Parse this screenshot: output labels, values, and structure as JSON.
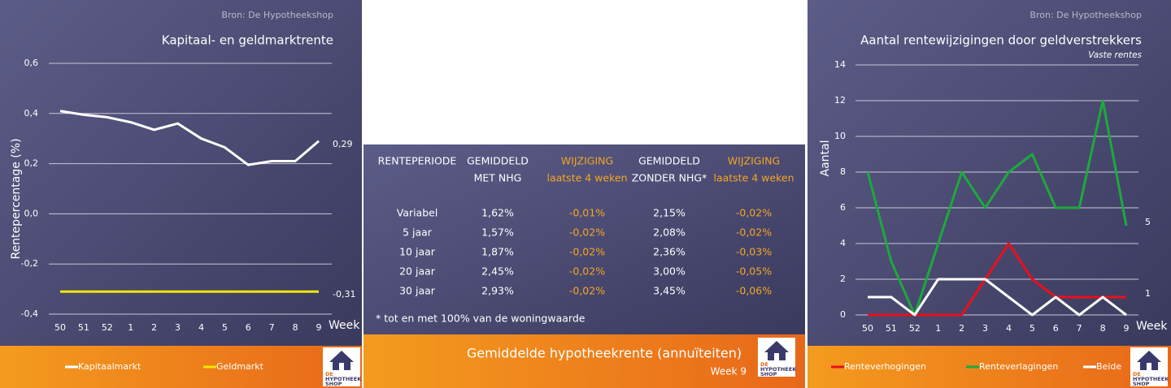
{
  "chart_data": [
    {
      "type": "line",
      "source": "Bron: De Hypotheekshop",
      "title": "Kapitaal- en geldmarktrente",
      "y_label": "Rentepercentage (%)",
      "x_label": "Week",
      "categories": [
        "50",
        "51",
        "52",
        "1",
        "2",
        "3",
        "4",
        "5",
        "6",
        "7",
        "8",
        "9"
      ],
      "ylim": [
        -0.4,
        0.6
      ],
      "yticks": [
        {
          "value": -0.4,
          "label": "-0,4"
        },
        {
          "value": -0.2,
          "label": "-0,2"
        },
        {
          "value": 0,
          "label": "0,0"
        },
        {
          "value": 0.2,
          "label": "0,2"
        },
        {
          "value": 0.4,
          "label": "0,4"
        },
        {
          "value": 0.6,
          "label": "0,6"
        }
      ],
      "grid": true,
      "series": [
        {
          "name": "Kapitaalmarkt",
          "color": "#ffffff",
          "values": [
            0.41,
            0.395,
            0.385,
            0.365,
            0.335,
            0.36,
            0.3,
            0.265,
            0.195,
            0.21,
            0.21,
            0.29
          ],
          "end_label": "0,29"
        },
        {
          "name": "Geldmarkt",
          "color": "#f2e600",
          "values": [
            -0.31,
            -0.31,
            -0.31,
            -0.31,
            -0.31,
            -0.31,
            -0.31,
            -0.31,
            -0.31,
            -0.31,
            -0.31,
            -0.31
          ],
          "end_label": "-0,31"
        }
      ]
    },
    {
      "type": "line",
      "source": "Bron: De Hypotheekshop",
      "title": "Aantal rentewijzigingen door geldverstrekkers",
      "subtitle": "Vaste rentes",
      "y_label": "Aantal",
      "x_label": "Week",
      "categories": [
        "50",
        "51",
        "52",
        "1",
        "2",
        "3",
        "4",
        "5",
        "6",
        "7",
        "8",
        "9"
      ],
      "ylim": [
        0,
        14
      ],
      "yticks": [
        0,
        2,
        4,
        6,
        8,
        10,
        12,
        14
      ],
      "grid": true,
      "series": [
        {
          "name": "Renteverhogingen",
          "color": "#e8101a",
          "values": [
            0,
            0,
            0,
            0,
            0,
            2,
            4,
            2,
            1,
            1,
            1,
            1
          ],
          "end_label": "1"
        },
        {
          "name": "Renteverlagingen",
          "color": "#1ea83c",
          "values": [
            8,
            3,
            0,
            4,
            8,
            6,
            8,
            9,
            6,
            6,
            12,
            5
          ],
          "end_label": "5"
        },
        {
          "name": "Beide",
          "color": "#ffffff",
          "values": [
            1,
            1,
            0,
            2,
            2,
            2,
            1,
            0,
            1,
            0,
            1,
            0
          ]
        }
      ]
    }
  ],
  "table": {
    "title": "Gemiddelde hypotheekrente (annuïteiten)",
    "week": "Week 9",
    "headers": [
      [
        "RENTEPERIODE"
      ],
      [
        "GEMIDDELD",
        "MET NHG"
      ],
      [
        "WIJZIGING",
        "laatste 4 weken"
      ],
      [
        "GEMIDDELD",
        "ZONDER NHG*"
      ],
      [
        "WIJZIGING",
        "laatste 4 weken"
      ]
    ],
    "rows": [
      [
        "Variabel",
        "1,62%",
        "-0,01%",
        "2,15%",
        "-0,02%"
      ],
      [
        "5 jaar",
        "1,57%",
        "-0,02%",
        "2,08%",
        "-0,02%"
      ],
      [
        "10 jaar",
        "1,87%",
        "-0,02%",
        "2,36%",
        "-0,03%"
      ],
      [
        "20 jaar",
        "2,45%",
        "-0,02%",
        "3,00%",
        "-0,05%"
      ],
      [
        "30 jaar",
        "2,93%",
        "-0,02%",
        "3,45%",
        "-0,06%"
      ]
    ],
    "footnote": "* tot en met 100% van de woningwaarde"
  },
  "logo": [
    "DE",
    "HYPOTHEEK",
    "SHOP"
  ]
}
